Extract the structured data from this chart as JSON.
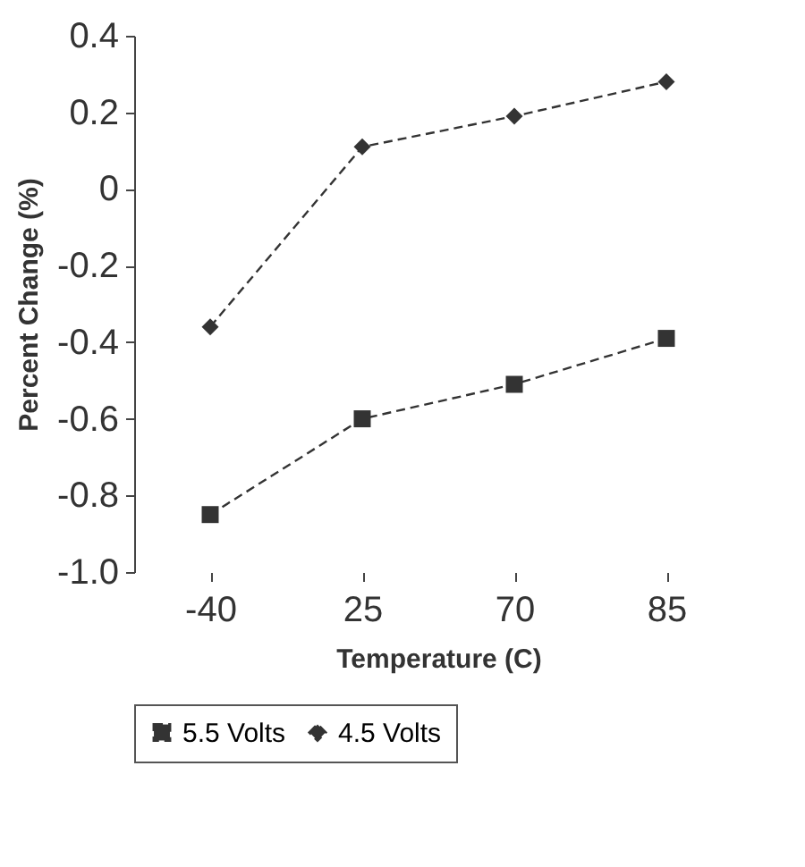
{
  "chart_data": {
    "type": "line",
    "xlabel": "Temperature (C)",
    "ylabel": "Percent Change (%)",
    "categories": [
      "-40",
      "25",
      "70",
      "85"
    ],
    "ylim": [
      -1.0,
      0.4
    ],
    "yticks": [
      {
        "value": -1,
        "label": "-1.0"
      },
      -0.8,
      -0.6,
      -0.4,
      -0.2,
      0,
      0.2,
      0.4
    ],
    "legend": "bottom",
    "line_style": "dashed",
    "series": [
      {
        "name": "5.5 Volts",
        "color": "#333333",
        "marker": "square",
        "values": [
          -0.85,
          -0.6,
          -0.51,
          -0.39
        ]
      },
      {
        "name": "4.5 Volts",
        "color": "#333333",
        "marker": "diamond",
        "values": [
          -0.36,
          0.11,
          0.19,
          0.28
        ]
      }
    ]
  }
}
